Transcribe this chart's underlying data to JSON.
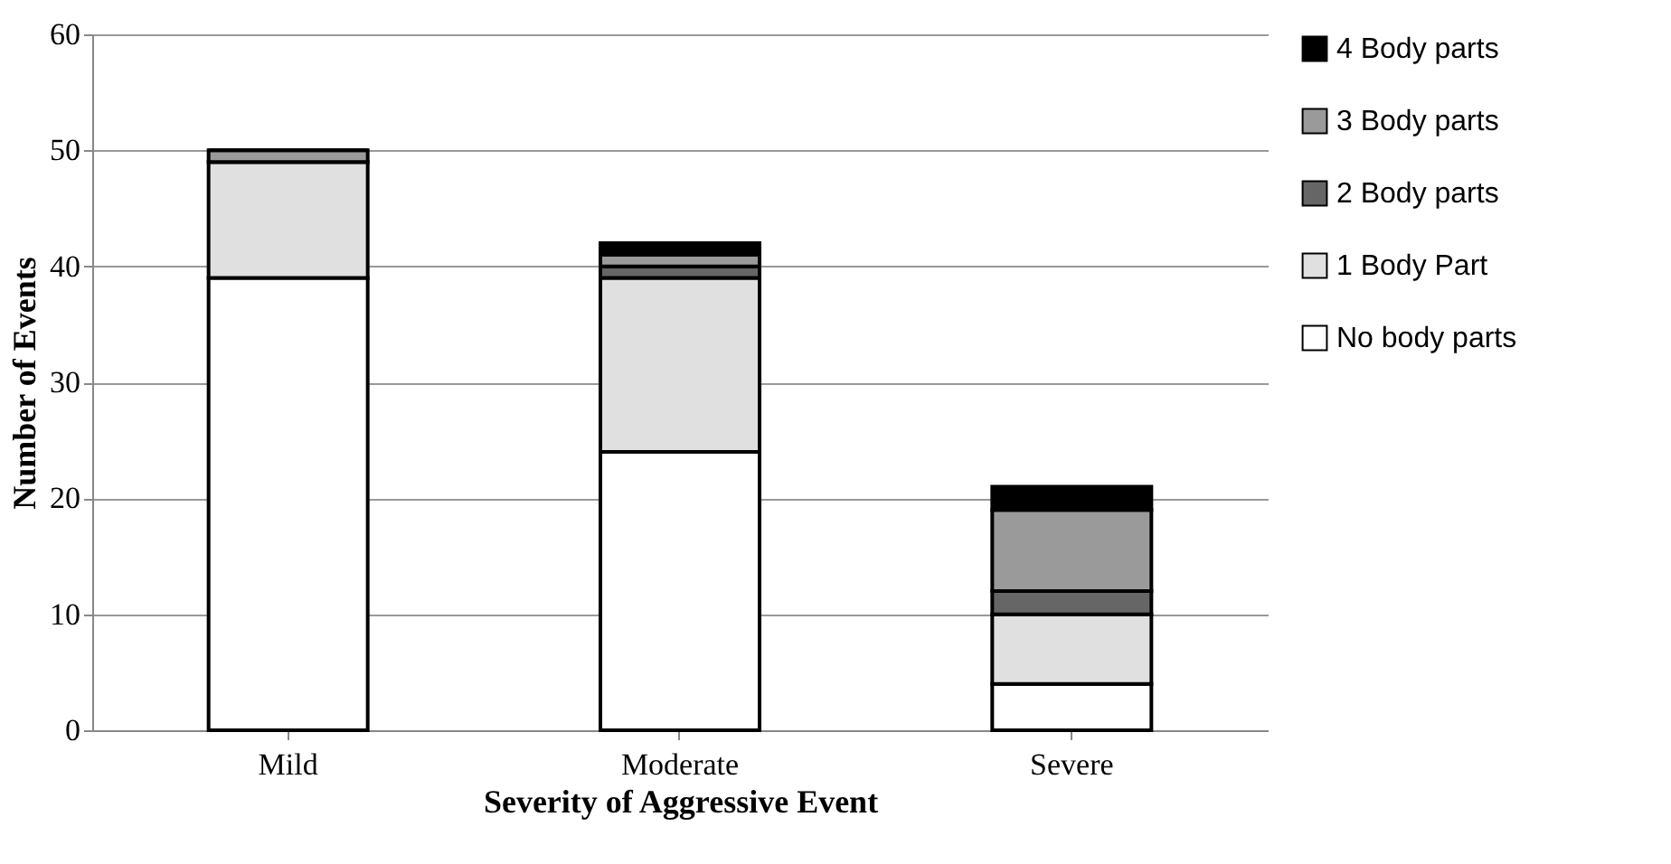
{
  "chart_data": {
    "type": "bar",
    "stacked": true,
    "xlabel": "Severity of Aggressive Event",
    "ylabel": "Number of Events",
    "categories": [
      "Mild",
      "Moderate",
      "Severe"
    ],
    "series": [
      {
        "name": "No body parts",
        "color": "#ffffff",
        "values": [
          39,
          24,
          4
        ]
      },
      {
        "name": "1 Body Part",
        "color": "#e0e0e0",
        "values": [
          10,
          15,
          6
        ]
      },
      {
        "name": "2 Body parts",
        "color": "#666666",
        "values": [
          0,
          1,
          2
        ]
      },
      {
        "name": "3 Body parts",
        "color": "#9a9a9a",
        "values": [
          1,
          1,
          7
        ]
      },
      {
        "name": "4 Body parts",
        "color": "#000000",
        "values": [
          0,
          1,
          2
        ]
      }
    ],
    "ylim": [
      0,
      60
    ],
    "yticks": [
      0,
      10,
      20,
      30,
      40,
      50,
      60
    ],
    "grid": "y",
    "legend": "right"
  }
}
